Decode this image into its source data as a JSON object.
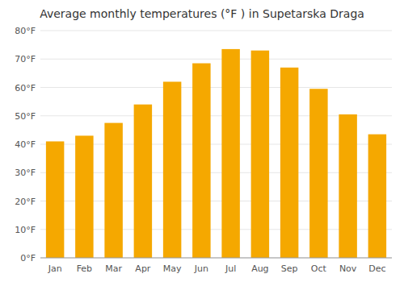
{
  "chart_data": {
    "type": "bar",
    "title": "Average monthly temperatures (°F ) in Supetarska Draga",
    "categories": [
      "Jan",
      "Feb",
      "Mar",
      "Apr",
      "May",
      "Jun",
      "Jul",
      "Aug",
      "Sep",
      "Oct",
      "Nov",
      "Dec"
    ],
    "values": [
      41,
      43,
      47.5,
      54,
      62,
      68.5,
      73.5,
      73,
      67,
      59.5,
      50.5,
      43.5
    ],
    "color": "#F5A800",
    "ylim": [
      0,
      80
    ],
    "yticks": [
      {
        "value": 0,
        "label": "0°F"
      },
      {
        "value": 10,
        "label": "10°F"
      },
      {
        "value": 20,
        "label": "20°F"
      },
      {
        "value": 30,
        "label": "30°F"
      },
      {
        "value": 40,
        "label": "40°F"
      },
      {
        "value": 50,
        "label": "50°F"
      },
      {
        "value": 60,
        "label": "60°F"
      },
      {
        "value": 70,
        "label": "70°F"
      },
      {
        "value": 80,
        "label": "80°F"
      }
    ],
    "grid": true
  }
}
